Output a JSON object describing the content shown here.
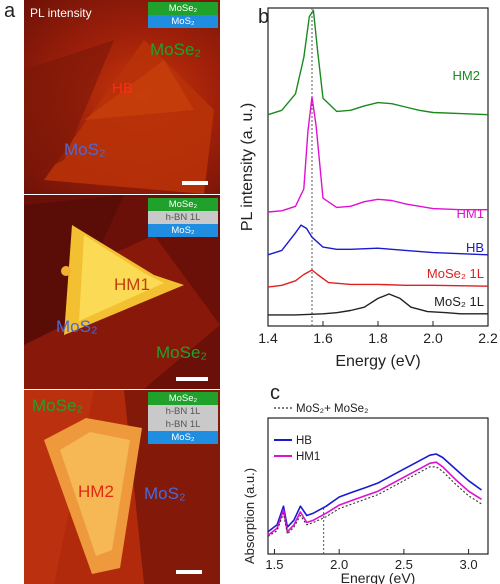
{
  "panel_labels": {
    "a": "a",
    "b": "b",
    "c": "c"
  },
  "maps": {
    "top": {
      "title": "PL intensity",
      "legend": [
        "MoSe₂",
        "MoS₂"
      ],
      "labels": {
        "mose2": "MoSe₂",
        "hb": "HB",
        "mos2": "MoS₂"
      }
    },
    "mid": {
      "legend": [
        "MoSe₂",
        "h-BN 1L",
        "MoS₂"
      ],
      "labels": {
        "hm1": "HM1",
        "mos2": "MoS₂",
        "mose2": "MoSe₂"
      }
    },
    "bot": {
      "legend": [
        "MoSe₂",
        "h-BN 1L",
        "h-BN 1L",
        "MoS₂"
      ],
      "labels": {
        "mose2": "MoSe₂",
        "hm2": "HM2",
        "mos2": "MoS₂"
      }
    }
  },
  "colors": {
    "HM2": "#1a8a1f",
    "HM1": "#e010d0",
    "HB": "#1a1ad0",
    "MoSe2_1L": "#e02020",
    "MoS2_1L": "#222222",
    "mix": "#333333"
  },
  "chart_data": [
    {
      "type": "line",
      "xlabel": "Energy (eV)",
      "ylabel": "PL intensity (a. u.)",
      "xlim": [
        1.4,
        2.2
      ],
      "xticks": [
        "1.4",
        "1.6",
        "1.8",
        "2.0",
        "2.2"
      ],
      "vline_x": 1.56,
      "series": [
        {
          "name": "HM2",
          "x": [
            1.4,
            1.45,
            1.5,
            1.53,
            1.55,
            1.565,
            1.58,
            1.6,
            1.65,
            1.7,
            1.75,
            1.8,
            1.85,
            1.9,
            1.95,
            2.0,
            2.1,
            2.2
          ],
          "y": [
            0.03,
            0.07,
            0.22,
            0.55,
            0.92,
            0.98,
            0.62,
            0.18,
            0.06,
            0.07,
            0.11,
            0.14,
            0.13,
            0.1,
            0.07,
            0.05,
            0.04,
            0.03
          ]
        },
        {
          "name": "HM1",
          "x": [
            1.4,
            1.45,
            1.5,
            1.53,
            1.545,
            1.56,
            1.575,
            1.6,
            1.65,
            1.7,
            1.75,
            1.8,
            1.85,
            1.9,
            2.0,
            2.1,
            2.2
          ],
          "y": [
            0.0,
            0.01,
            0.05,
            0.2,
            0.7,
            1.0,
            0.75,
            0.12,
            0.04,
            0.05,
            0.09,
            0.11,
            0.1,
            0.07,
            0.03,
            0.02,
            0.02
          ]
        },
        {
          "name": "HB",
          "x": [
            1.4,
            1.45,
            1.5,
            1.52,
            1.54,
            1.56,
            1.6,
            1.65,
            1.7,
            1.8,
            1.9,
            2.0,
            2.1,
            2.2
          ],
          "y": [
            0.02,
            0.06,
            0.22,
            0.29,
            0.26,
            0.18,
            0.09,
            0.07,
            0.07,
            0.08,
            0.06,
            0.04,
            0.03,
            0.02
          ]
        },
        {
          "name": "MoSe₂ 1L",
          "x": [
            1.4,
            1.45,
            1.5,
            1.53,
            1.56,
            1.58,
            1.62,
            1.7,
            1.8,
            1.9,
            2.0,
            2.2
          ],
          "y": [
            0.01,
            0.03,
            0.08,
            0.15,
            0.2,
            0.15,
            0.06,
            0.04,
            0.04,
            0.03,
            0.03,
            0.02
          ]
        },
        {
          "name": "MoS₂ 1L",
          "x": [
            1.4,
            1.5,
            1.6,
            1.65,
            1.7,
            1.75,
            1.8,
            1.84,
            1.88,
            1.92,
            1.98,
            2.05,
            2.1,
            2.2
          ],
          "y": [
            0.01,
            0.01,
            0.02,
            0.03,
            0.05,
            0.08,
            0.16,
            0.2,
            0.16,
            0.08,
            0.04,
            0.03,
            0.02,
            0.02
          ]
        }
      ]
    },
    {
      "type": "line",
      "xlabel": "Energy (eV)",
      "ylabel": "Absorption (a.u.)",
      "xlim": [
        1.45,
        3.15
      ],
      "xticks": [
        "1.5",
        "2.0",
        "2.5",
        "3.0"
      ],
      "vline_x": 1.88,
      "series": [
        {
          "name": "MoS₂+ MoSe₂",
          "x": [
            1.45,
            1.52,
            1.57,
            1.6,
            1.65,
            1.7,
            1.75,
            1.8,
            1.9,
            2.0,
            2.1,
            2.2,
            2.3,
            2.4,
            2.5,
            2.6,
            2.7,
            2.75,
            2.8,
            2.9,
            3.0,
            3.1
          ],
          "y": [
            0.1,
            0.15,
            0.3,
            0.12,
            0.18,
            0.28,
            0.2,
            0.22,
            0.27,
            0.34,
            0.38,
            0.42,
            0.46,
            0.52,
            0.58,
            0.64,
            0.7,
            0.7,
            0.66,
            0.55,
            0.45,
            0.38
          ]
        },
        {
          "name": "HB",
          "x": [
            1.45,
            1.52,
            1.57,
            1.6,
            1.65,
            1.7,
            1.75,
            1.8,
            1.9,
            2.0,
            2.1,
            2.2,
            2.3,
            2.4,
            2.5,
            2.6,
            2.7,
            2.75,
            2.8,
            2.9,
            3.0,
            3.1
          ],
          "y": [
            0.14,
            0.2,
            0.36,
            0.18,
            0.24,
            0.36,
            0.28,
            0.3,
            0.36,
            0.44,
            0.48,
            0.52,
            0.56,
            0.62,
            0.68,
            0.74,
            0.8,
            0.81,
            0.78,
            0.68,
            0.58,
            0.5
          ]
        },
        {
          "name": "HM1",
          "x": [
            1.45,
            1.52,
            1.57,
            1.6,
            1.65,
            1.7,
            1.75,
            1.8,
            1.9,
            2.0,
            2.1,
            2.2,
            2.3,
            2.4,
            2.5,
            2.6,
            2.7,
            2.75,
            2.8,
            2.9,
            3.0,
            3.1
          ],
          "y": [
            0.11,
            0.17,
            0.33,
            0.14,
            0.2,
            0.31,
            0.22,
            0.24,
            0.3,
            0.37,
            0.41,
            0.45,
            0.49,
            0.55,
            0.61,
            0.67,
            0.73,
            0.74,
            0.7,
            0.59,
            0.49,
            0.42
          ]
        }
      ]
    }
  ]
}
